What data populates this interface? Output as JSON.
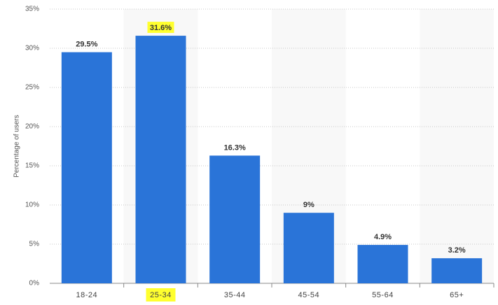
{
  "chart_data": {
    "type": "bar",
    "y_label": "Percentage of users",
    "categories": [
      "18-24",
      "25-34",
      "35-44",
      "45-54",
      "55-64",
      "65+"
    ],
    "values": [
      29.5,
      31.6,
      16.3,
      9,
      4.9,
      3.2
    ],
    "value_labels": [
      "29.5%",
      "31.6%",
      "16.3%",
      "9%",
      "4.9%",
      "3.2%"
    ],
    "color": "#2a74d8",
    "ylim": [
      0,
      35
    ],
    "yticks": [
      {
        "value": 0,
        "label": "0%"
      },
      {
        "value": 5,
        "label": "5%"
      },
      {
        "value": 10,
        "label": "10%"
      },
      {
        "value": 15,
        "label": "15%"
      },
      {
        "value": 20,
        "label": "20%"
      },
      {
        "value": 25,
        "label": "25%"
      },
      {
        "value": 30,
        "label": "30%"
      },
      {
        "value": 35,
        "label": "35%"
      }
    ],
    "grid": true
  }
}
